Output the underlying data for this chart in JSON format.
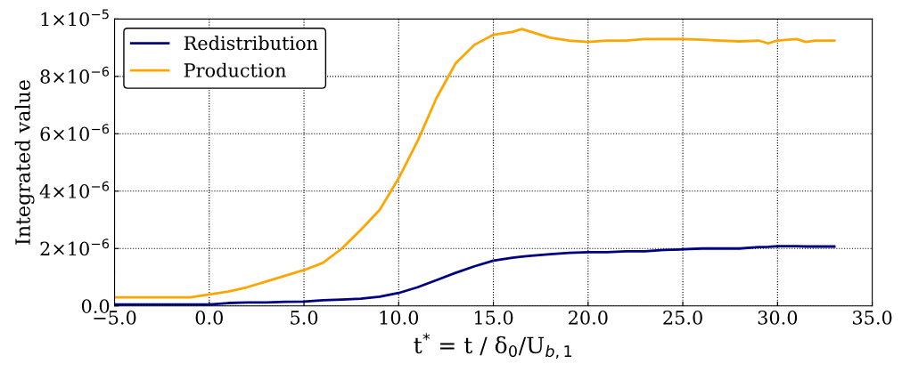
{
  "chart_data": {
    "type": "line",
    "xlabel": "t$^{*}$ = t / δ$_{0}$/U$_{b,1}$",
    "ylabel": "Integrated value",
    "xlim": [
      -5,
      35
    ],
    "xticks": [
      {
        "value": -5,
        "label": "−5.0"
      },
      {
        "value": 0,
        "label": "0.0"
      },
      {
        "value": 5,
        "label": "5.0"
      },
      {
        "value": 10,
        "label": "10.0"
      },
      {
        "value": 15,
        "label": "15.0"
      },
      {
        "value": 20,
        "label": "20.0"
      },
      {
        "value": 25,
        "label": "25.0"
      },
      {
        "value": 30,
        "label": "30.0"
      },
      {
        "value": 35,
        "label": "35.0"
      }
    ],
    "ylim": [
      0,
      1e-05
    ],
    "yticks": [
      {
        "value": 0,
        "label": "0.0"
      },
      {
        "value": 2e-06,
        "label": "2×10$^{−6}$"
      },
      {
        "value": 4e-06,
        "label": "4×10$^{−6}$"
      },
      {
        "value": 6e-06,
        "label": "6×10$^{−6}$"
      },
      {
        "value": 8e-06,
        "label": "8×10$^{−6}$"
      },
      {
        "value": 1e-05,
        "label": "1×10$^{−5}$"
      }
    ],
    "x": [
      -5,
      -1,
      0,
      1,
      2,
      3,
      4,
      5,
      6,
      7,
      8,
      9,
      10,
      11,
      12,
      13,
      14,
      15,
      16,
      16.5,
      17,
      18,
      19,
      20,
      21,
      22,
      23,
      24,
      25,
      26,
      27,
      28,
      29,
      29.5,
      30,
      31,
      31.5,
      32,
      33
    ],
    "series": [
      {
        "name": "Redistribution",
        "color": "#000080",
        "values": [
          5e-08,
          5e-08,
          5e-08,
          1e-07,
          1.2e-07,
          1.2e-07,
          1.4e-07,
          1.5e-07,
          2e-07,
          2.2e-07,
          2.5e-07,
          3.2e-07,
          4.5e-07,
          6.5e-07,
          9e-07,
          1.15e-06,
          1.38e-06,
          1.58e-06,
          1.68e-06,
          1.72e-06,
          1.75e-06,
          1.8e-06,
          1.85e-06,
          1.87e-06,
          1.87e-06,
          1.9e-06,
          1.9e-06,
          1.95e-06,
          1.97e-06,
          2e-06,
          2e-06,
          2e-06,
          2.05e-06,
          2.06e-06,
          2.08e-06,
          2.08e-06,
          2.07e-06,
          2.07e-06,
          2.07e-06
        ]
      },
      {
        "name": "Production",
        "color": "#ffa500",
        "values": [
          3e-07,
          3e-07,
          4e-07,
          5e-07,
          6.5e-07,
          8.5e-07,
          1.05e-06,
          1.25e-06,
          1.5e-06,
          2e-06,
          2.65e-06,
          3.35e-06,
          4.45e-06,
          5.75e-06,
          7.25e-06,
          8.45e-06,
          9.1e-06,
          9.45e-06,
          9.55e-06,
          9.65e-06,
          9.55e-06,
          9.35e-06,
          9.25e-06,
          9.2e-06,
          9.25e-06,
          9.25e-06,
          9.3e-06,
          9.3e-06,
          9.3e-06,
          9.28e-06,
          9.25e-06,
          9.22e-06,
          9.25e-06,
          9.15e-06,
          9.25e-06,
          9.3e-06,
          9.2e-06,
          9.25e-06,
          9.25e-06
        ]
      }
    ],
    "grid": true,
    "legend": "top left",
    "line_style": "solid"
  }
}
